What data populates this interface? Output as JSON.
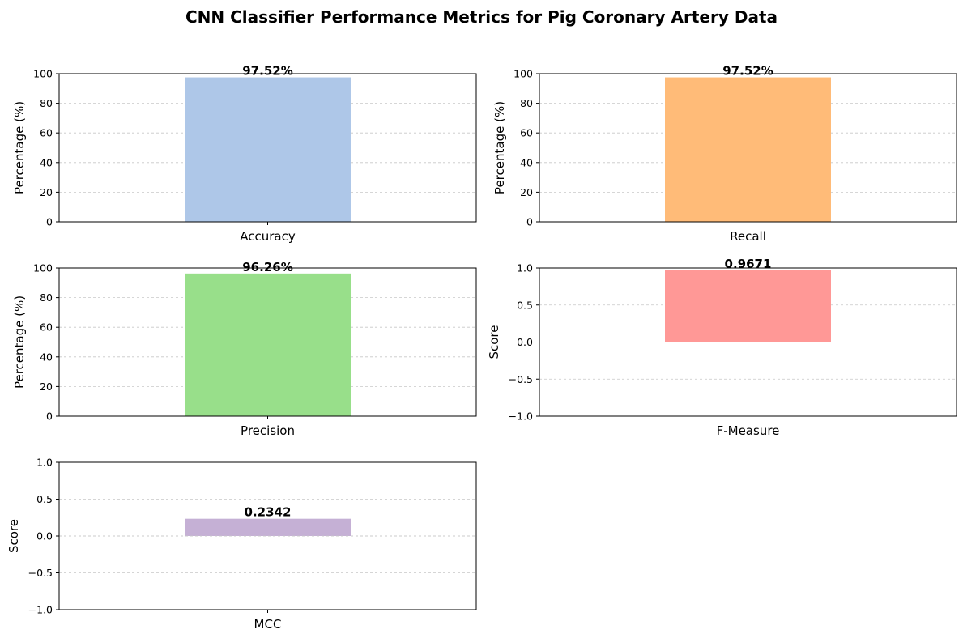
{
  "chart_data": {
    "title": "CNN Classifier Performance Metrics for Pig Coronary Artery Data",
    "grid": "y-dashed",
    "panels": [
      {
        "type": "bar",
        "categories": [
          "Accuracy"
        ],
        "values": [
          97.52
        ],
        "data_label": "97.52%",
        "ylabel": "Percentage (%)",
        "ylim": [
          0,
          100
        ],
        "yticks": [
          0,
          20,
          40,
          60,
          80,
          100
        ],
        "ytick_labels": [
          "0",
          "20",
          "40",
          "60",
          "80",
          "100"
        ],
        "color": "#aec7e8"
      },
      {
        "type": "bar",
        "categories": [
          "Recall"
        ],
        "values": [
          97.52
        ],
        "data_label": "97.52%",
        "ylabel": "Percentage (%)",
        "ylim": [
          0,
          100
        ],
        "yticks": [
          0,
          20,
          40,
          60,
          80,
          100
        ],
        "ytick_labels": [
          "0",
          "20",
          "40",
          "60",
          "80",
          "100"
        ],
        "color": "#ffbb78"
      },
      {
        "type": "bar",
        "categories": [
          "Precision"
        ],
        "values": [
          96.26
        ],
        "data_label": "96.26%",
        "ylabel": "Percentage (%)",
        "ylim": [
          0,
          100
        ],
        "yticks": [
          0,
          20,
          40,
          60,
          80,
          100
        ],
        "ytick_labels": [
          "0",
          "20",
          "40",
          "60",
          "80",
          "100"
        ],
        "color": "#98df8a"
      },
      {
        "type": "bar",
        "categories": [
          "F-Measure"
        ],
        "values": [
          0.9671
        ],
        "data_label": "0.9671",
        "ylabel": "Score",
        "ylim": [
          -1,
          1
        ],
        "yticks": [
          -1,
          -0.5,
          0,
          0.5,
          1
        ],
        "ytick_labels": [
          "−1.0",
          "−0.5",
          "0.0",
          "0.5",
          "1.0"
        ],
        "color": "#ff9896"
      },
      {
        "type": "bar",
        "categories": [
          "MCC"
        ],
        "values": [
          0.2342
        ],
        "data_label": "0.2342",
        "ylabel": "Score",
        "ylim": [
          -1,
          1
        ],
        "yticks": [
          -1,
          -0.5,
          0,
          0.5,
          1
        ],
        "ytick_labels": [
          "−1.0",
          "−0.5",
          "0.0",
          "0.5",
          "1.0"
        ],
        "color": "#c5b0d5"
      }
    ]
  }
}
